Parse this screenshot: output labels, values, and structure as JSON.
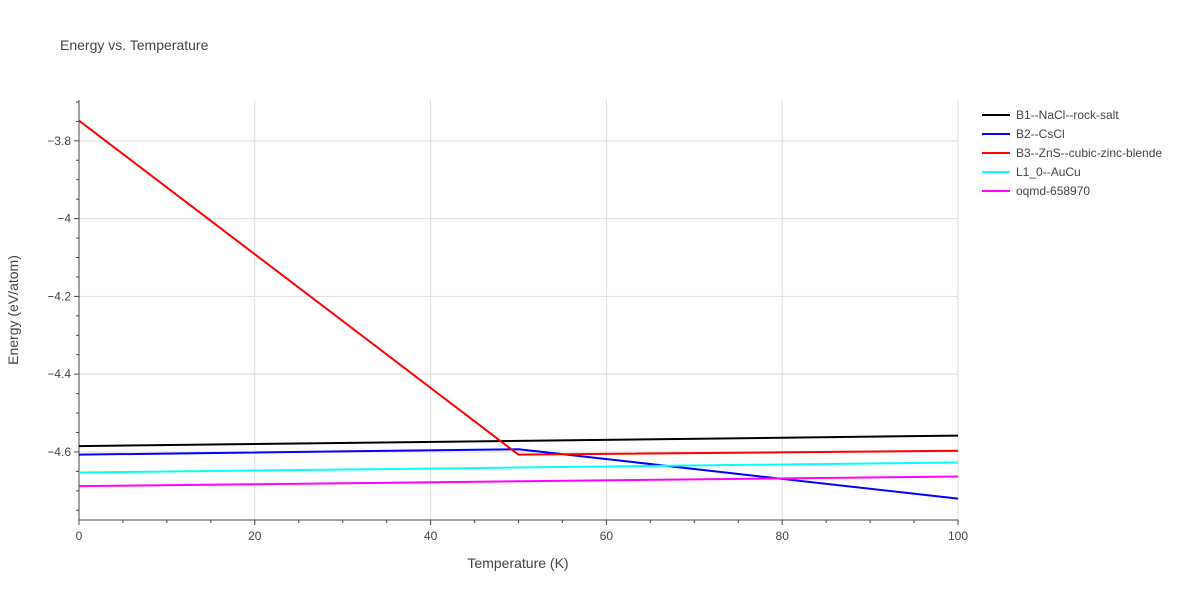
{
  "chart_data": {
    "type": "line",
    "title": "Energy vs. Temperature",
    "xlabel": "Temperature (K)",
    "ylabel": "Energy (eV/atom)",
    "xlim": [
      0,
      100
    ],
    "ylim": [
      -4.775,
      -3.695
    ],
    "x_ticks": [
      0,
      20,
      40,
      60,
      80,
      100
    ],
    "x_tick_labels": [
      "0",
      "20",
      "40",
      "60",
      "80",
      "100"
    ],
    "y_ticks": [
      -4.6,
      -4.4,
      -4.2,
      -4,
      -3.8
    ],
    "y_tick_labels": [
      "−4.6",
      "−4.4",
      "−4.2",
      "−4",
      "−3.8"
    ],
    "grid": true,
    "legend_position": "top-right outside",
    "series": [
      {
        "name": "B1--NaCl--rock-salt",
        "color": "#000000",
        "x": [
          0,
          100
        ],
        "y": [
          -4.585,
          -4.558
        ]
      },
      {
        "name": "B2--CsCl",
        "color": "#0000ff",
        "x": [
          0,
          50,
          100
        ],
        "y": [
          -4.607,
          -4.593,
          -4.72
        ]
      },
      {
        "name": "B3--ZnS--cubic-zinc-blende",
        "color": "#ff0000",
        "x": [
          0,
          50,
          100
        ],
        "y": [
          -3.748,
          -4.607,
          -4.597
        ]
      },
      {
        "name": "L1_0--AuCu",
        "color": "#00ffff",
        "x": [
          0,
          100
        ],
        "y": [
          -4.653,
          -4.627
        ]
      },
      {
        "name": "oqmd-658970",
        "color": "#ff00ff",
        "x": [
          0,
          100
        ],
        "y": [
          -4.688,
          -4.663
        ]
      }
    ]
  }
}
